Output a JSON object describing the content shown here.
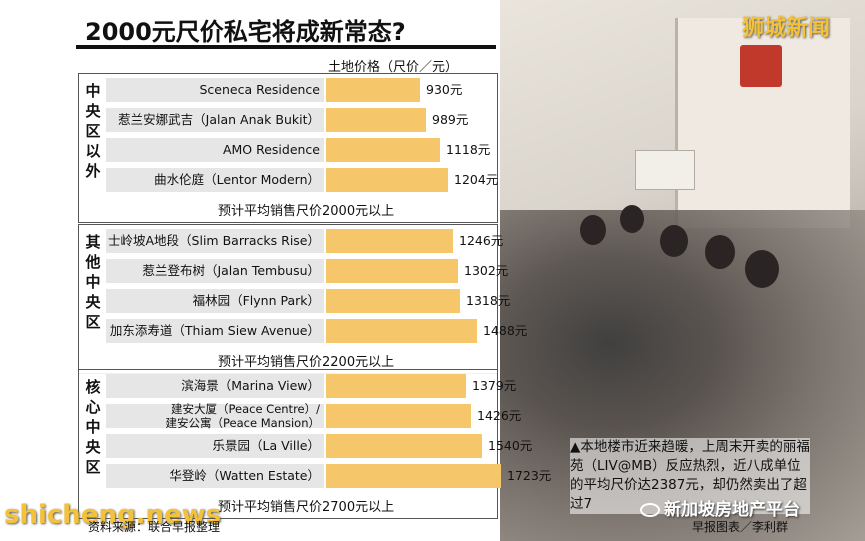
{
  "title": "2000元尺价私宅将成新常态?",
  "brand": "狮城新闻",
  "unit_label": "土地价格（尺价／元）",
  "colors": {
    "bar": "#f5c76a",
    "row_bg": "#e6e6e6",
    "brand": "#f3c23a"
  },
  "chart_data": {
    "type": "bar",
    "orientation": "horizontal",
    "title": "2000元尺价私宅将成新常态?",
    "xlabel": "土地价格（尺价／元）",
    "value_suffix": "元",
    "xlim": [
      0,
      1800
    ],
    "groups": [
      {
        "label": "中央区以外",
        "note": "预计平均销售尺价2000元以上",
        "categories": [
          "Sceneca Residence",
          "惹兰安娜武吉（Jalan Anak Bukit）",
          "AMO Residence",
          "曲水伦庭（Lentor Modern）"
        ],
        "values": [
          930,
          989,
          1118,
          1204
        ],
        "value_labels": [
          "930元",
          "989元",
          "1118元",
          "1204元"
        ]
      },
      {
        "label": "其他中央区",
        "note": "预计平均销售尺价2200元以上",
        "categories": [
          "士岭坡A地段（Slim Barracks Rise）",
          "惹兰登布树（Jalan Tembusu）",
          "福林园（Flynn Park）",
          "加东添寿道（Thiam Siew Avenue）"
        ],
        "values": [
          1246,
          1302,
          1318,
          1488
        ],
        "value_labels": [
          "1246元",
          "1302元",
          "1318元",
          "1488元"
        ]
      },
      {
        "label": "核心中央区",
        "note": "预计平均销售尺价2700元以上",
        "categories": [
          "滨海景（Marina View）",
          "建安大厦（Peace Centre）/ 建安公寓（Peace Mansion）",
          "乐景园（La Ville）",
          "华登岭（Watten Estate）"
        ],
        "values": [
          1379,
          1426,
          1540,
          1723
        ],
        "value_labels": [
          "1379元",
          "1426元",
          "1540元",
          "1723元"
        ]
      }
    ]
  },
  "caption": "▲本地楼市近来趋暖，上周末开卖的丽福苑（LIV@MB）反应热烈，近八成单位的平均尺价达2387元，却仍然卖出了超过7",
  "credit_left": "资料来源：联合早报整理",
  "credit_right": "早报图表／李利群",
  "watermark_left": "shicheng.news",
  "watermark_right": "新加坡房地产平台"
}
